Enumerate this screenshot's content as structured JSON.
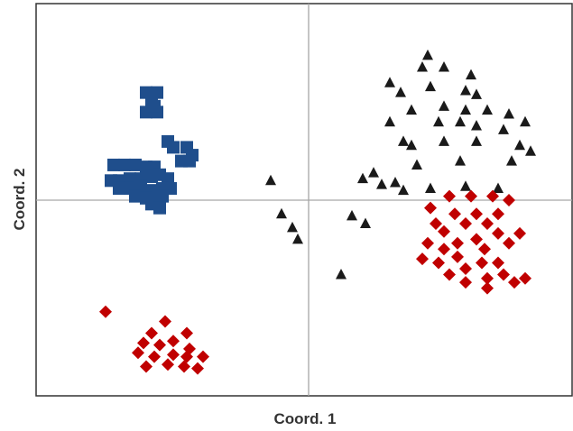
{
  "colors": {
    "frame": "#333333",
    "zero_lines": "#a6a6a6",
    "background": "#ffffff"
  },
  "chart_data": {
    "type": "scatter",
    "title": "",
    "xlabel": "Coord. 1",
    "ylabel": "Coord. 2",
    "xlim": [
      -1.0,
      1.0
    ],
    "ylim": [
      -1.0,
      1.0
    ],
    "grid": false,
    "zero_lines": true,
    "legend": "none",
    "series": [
      {
        "marker": "square",
        "color": "#1f4e8c",
        "points": [
          [
            -0.6,
            0.55
          ],
          [
            -0.56,
            0.55
          ],
          [
            -0.58,
            0.5
          ],
          [
            -0.6,
            0.45
          ],
          [
            -0.56,
            0.45
          ],
          [
            -0.57,
            0.48
          ],
          [
            -0.52,
            0.3
          ],
          [
            -0.5,
            0.27
          ],
          [
            -0.45,
            0.27
          ],
          [
            -0.43,
            0.23
          ],
          [
            -0.47,
            0.2
          ],
          [
            -0.44,
            0.2
          ],
          [
            -0.72,
            0.18
          ],
          [
            -0.68,
            0.18
          ],
          [
            -0.64,
            0.18
          ],
          [
            -0.6,
            0.17
          ],
          [
            -0.57,
            0.17
          ],
          [
            -0.73,
            0.1
          ],
          [
            -0.7,
            0.1
          ],
          [
            -0.66,
            0.11
          ],
          [
            -0.62,
            0.11
          ],
          [
            -0.58,
            0.12
          ],
          [
            -0.55,
            0.13
          ],
          [
            -0.52,
            0.11
          ],
          [
            -0.7,
            0.06
          ],
          [
            -0.66,
            0.06
          ],
          [
            -0.62,
            0.07
          ],
          [
            -0.58,
            0.05
          ],
          [
            -0.54,
            0.06
          ],
          [
            -0.51,
            0.06
          ],
          [
            -0.64,
            0.02
          ],
          [
            -0.6,
            0.01
          ],
          [
            -0.57,
            0.0
          ],
          [
            -0.54,
            0.02
          ],
          [
            -0.58,
            -0.02
          ],
          [
            -0.55,
            -0.04
          ]
        ]
      },
      {
        "marker": "triangle",
        "color": "#1a1a1a",
        "points": [
          [
            0.44,
            0.74
          ],
          [
            0.42,
            0.68
          ],
          [
            0.5,
            0.68
          ],
          [
            0.6,
            0.64
          ],
          [
            0.45,
            0.58
          ],
          [
            0.3,
            0.6
          ],
          [
            0.34,
            0.55
          ],
          [
            0.62,
            0.54
          ],
          [
            0.58,
            0.56
          ],
          [
            0.5,
            0.48
          ],
          [
            0.58,
            0.46
          ],
          [
            0.66,
            0.46
          ],
          [
            0.74,
            0.44
          ],
          [
            0.3,
            0.4
          ],
          [
            0.38,
            0.46
          ],
          [
            0.48,
            0.4
          ],
          [
            0.56,
            0.4
          ],
          [
            0.62,
            0.38
          ],
          [
            0.72,
            0.36
          ],
          [
            0.62,
            0.3
          ],
          [
            0.5,
            0.3
          ],
          [
            0.38,
            0.28
          ],
          [
            0.35,
            0.3
          ],
          [
            0.78,
            0.28
          ],
          [
            0.8,
            0.4
          ],
          [
            0.82,
            0.25
          ],
          [
            0.75,
            0.2
          ],
          [
            0.56,
            0.2
          ],
          [
            0.4,
            0.18
          ],
          [
            0.24,
            0.14
          ],
          [
            0.2,
            0.11
          ],
          [
            0.27,
            0.08
          ],
          [
            0.32,
            0.09
          ],
          [
            0.35,
            0.05
          ],
          [
            0.45,
            0.06
          ],
          [
            0.58,
            0.07
          ],
          [
            0.7,
            0.06
          ],
          [
            -0.14,
            0.1
          ],
          [
            -0.1,
            -0.07
          ],
          [
            -0.06,
            -0.14
          ],
          [
            -0.04,
            -0.2
          ],
          [
            0.16,
            -0.08
          ],
          [
            0.21,
            -0.12
          ],
          [
            0.12,
            -0.38
          ]
        ]
      },
      {
        "marker": "diamond",
        "color": "#c00000",
        "points": [
          [
            0.52,
            0.02
          ],
          [
            0.6,
            0.02
          ],
          [
            0.68,
            0.02
          ],
          [
            0.74,
            0.0
          ],
          [
            0.45,
            -0.04
          ],
          [
            0.54,
            -0.07
          ],
          [
            0.62,
            -0.07
          ],
          [
            0.7,
            -0.07
          ],
          [
            0.47,
            -0.12
          ],
          [
            0.5,
            -0.16
          ],
          [
            0.58,
            -0.12
          ],
          [
            0.66,
            -0.12
          ],
          [
            0.7,
            -0.17
          ],
          [
            0.78,
            -0.17
          ],
          [
            0.44,
            -0.22
          ],
          [
            0.5,
            -0.25
          ],
          [
            0.55,
            -0.22
          ],
          [
            0.62,
            -0.2
          ],
          [
            0.65,
            -0.25
          ],
          [
            0.74,
            -0.22
          ],
          [
            0.42,
            -0.3
          ],
          [
            0.48,
            -0.32
          ],
          [
            0.55,
            -0.29
          ],
          [
            0.58,
            -0.35
          ],
          [
            0.64,
            -0.32
          ],
          [
            0.7,
            -0.32
          ],
          [
            0.66,
            -0.4
          ],
          [
            0.72,
            -0.38
          ],
          [
            0.76,
            -0.42
          ],
          [
            0.8,
            -0.4
          ],
          [
            0.66,
            -0.45
          ],
          [
            0.58,
            -0.42
          ],
          [
            0.52,
            -0.38
          ],
          [
            -0.75,
            -0.57
          ],
          [
            -0.53,
            -0.62
          ],
          [
            -0.58,
            -0.68
          ],
          [
            -0.45,
            -0.68
          ],
          [
            -0.61,
            -0.73
          ],
          [
            -0.55,
            -0.74
          ],
          [
            -0.5,
            -0.72
          ],
          [
            -0.44,
            -0.76
          ],
          [
            -0.63,
            -0.78
          ],
          [
            -0.57,
            -0.8
          ],
          [
            -0.5,
            -0.79
          ],
          [
            -0.45,
            -0.8
          ],
          [
            -0.39,
            -0.8
          ],
          [
            -0.6,
            -0.85
          ],
          [
            -0.52,
            -0.84
          ],
          [
            -0.46,
            -0.85
          ],
          [
            -0.41,
            -0.86
          ]
        ]
      }
    ]
  }
}
